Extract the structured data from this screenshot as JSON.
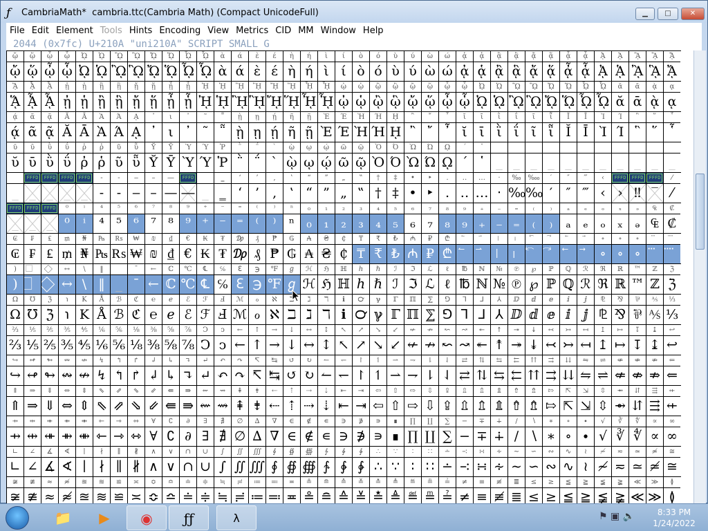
{
  "window": {
    "title": "CambriaMath*  cambria.ttc(Cambria Math) (Compact UnicodeFull)",
    "app_icon": "fontforge-icon"
  },
  "menu": [
    "File",
    "Edit",
    "Element",
    "Tools",
    "Hints",
    "Encoding",
    "View",
    "Metrics",
    "CID",
    "MM",
    "Window",
    "Help"
  ],
  "menu_disabled": [
    "Tools"
  ],
  "status": "2044 (0x7fc) U+210A \"uni210A\" SCRIPT SMALL G",
  "colors": {
    "selection": "#7aa2d6",
    "placeholder_label": "#1f3c78"
  },
  "grid": {
    "rows": [
      "ᾤ ᾥ ᾦ ᾧ ᾨ ᾩ ᾪ ᾫ ᾬ ᾭ ᾮ ᾯ ὰ ά ὲ έ ὴ ή ὶ ί ὸ ό ὺ ύ ὼ ώ ᾀ ᾁ ᾂ ᾃ ᾄ ᾅ ᾆ ᾇ ᾈ ᾉ ᾊ ᾋ ᾌ",
      "ᾍ ᾎ ᾏ ᾐ ᾑ ᾒ ᾓ ᾔ ᾕ ᾖ ᾗ ᾘ ᾙ ᾚ ᾛ ᾜ ᾝ ᾞ ᾟ ᾠ ᾡ ᾢ ᾣ ᾤ ᾥ ᾦ ᾧ ᾨ ᾩ ᾪ ᾫ ᾬ ᾭ ᾮ ᾯ ᾰ ᾱ ᾲ ᾳ",
      "ᾴ ᾶ ᾷ Ᾰ Ᾱ Ὰ Ά ᾼ ᾽ ι ᾿ ῀ ῁ ῂ ῃ ῄ ῆ ῇ Ὲ Έ Ὴ Ή ῌ ῍ ῎ ῏ ῐ ῑ ῒ ΐ ῖ ῗ Ῐ Ῑ Ὶ Ί ῝ ῞ ῟",
      "ῠ ῡ ῢ ΰ ῤ ῥ ῦ ῧ Ῠ Ῡ Ὺ Ύ Ῥ ῭ ΅ ` ῲ ῳ ῴ ῶ ῷ Ὸ Ό Ὼ Ώ ῼ ´ ῾ _ _ _ _ _ _ _ _ _ _ _",
      "_ _ _ _ _ ‐ ‑ ‒ – — ― _ ‗ ‘ ’ ‚ ‛ “ ” „ ‟ † ‡ • ‣ ․ ‥ … ‧ ‰ ‱ ′ ″ ‴ ‹ › ‼ ‾ ⁄",
      "_ _ _ ⁰ ⁱ ⁴ ⁵ ⁶ ⁷ ⁸ ⁹ ⁺ ⁻ ⁼ ⁽ ⁾ ⁿ ₀ ₁ ₂ ₃ ₄ ₅ ₆ ₇ ₈ ₉ ₊ ₋ ₌ ₍ ₎ ₐ ₑ ₒ ₓ ₔ ₠ ₡",
      "₢ ₣ ₤ ₥ ₦ ₧ ₨ ₩ ₪ ₫ € ₭ ₮ ₯ ₰ ₱ ₲ ₳ ₴ ₵ ₸ ₹ ₺ ₼ ₽ ₾ ⃐ ⃑ ⃒ ⃓ ⃔ ⃕ ⃖ ⃗ ∘ ∘ ∘ ⃛ ⃜",
      ") ⃞ ⃟ ↔ \\ ‖ _ ¯ ← ℂ ℃ ℄ ℅ ℇ ℈ ℉ ℊ ℋ ℌ ℍ ℎ ℏ ℐ ℑ ℒ ℓ ℔ ℕ № ℗ ℘ ℙ ℚ ℛ ℜ ℝ ™ ℤ ℨ",
      "Ω ℧ ℨ ℩ K Å ℬ ℭ ℮ ℯ ℰ ℱ Ⅎ ℳ ℴ ℵ ℶ ℷ ℸ ℹ ℺ ℽ ℾ ℿ ⅀ ⅁ ⅂ ⅃ ⅄ ⅅ ⅆ ⅇ ⅈ ⅉ ⅊ ⅋ ⅌ ⅍ ⅓",
      "⅔ ⅕ ⅖ ⅗ ⅘ ⅙ ⅚ ⅛ ⅜ ⅝ ⅞ Ↄ ↄ ← ↑ → ↓ ↔ ↕ ↖ ↗ ↘ ↙ ↚ ↛ ↜ ↝ ↞ ↟ ↠ ↡ ↢ ↣ ↤ ↥ ↦ ↧ ↨ ↩",
      "↪ ↫ ↬ ↭ ↮ ↯ ↰ ↱ ↲ ↳ ↴ ↵ ↶ ↷ ↸ ↹ ↺ ↻ ↼ ↽ ↾ ↿ ⇀ ⇁ ⇂ ⇃ ⇄ ⇅ ⇆ ⇇ ⇈ ⇉ ⇊ ⇋ ⇌ ⇍ ⇎ ⇏ ⇐",
      "⇑ ⇒ ⇓ ⇔ ⇕ ⇖ ⇗ ⇘ ⇙ ⇚ ⇛ ⇜ ⇝ ⇞ ⇟ ⇠ ⇡ ⇢ ⇣ ⇤ ⇥ ⇦ ⇧ ⇨ ⇩ ⇪ ⇫ ⇬ ⇭ ⇮ ⇯ ⇰ ⇱ ⇲ ⇳ ⇴ ⇵ ⇶ ⇷",
      "⇸ ⇹ ⇺ ⇻ ⇼ ⇽ ⇾ ⇿ ∀ ∁ ∂ ∃ ∄ ∅ ∆ ∇ ∈ ∉ ∊ ∋ ∌ ∍ ∎ ∏ ∐ ∑ − ∓ ∔ ∕ ∖ ∗ ∘ ∙ √ ∛ ∜ ∝ ∞",
      "∟ ∠ ∡ ∢ ∣ ∤ ∥ ∦ ∧ ∨ ∩ ∪ ∫ ∬ ∭ ∮ ∯ ∰ ∱ ∲ ∳ ∴ ∵ ∶ ∷ ∸ ∹ ∺ ∻ ∼ ∽ ∾ ∿ ≀ ≁ ≂ ≃ ≄ ≅",
      "≆ ≇ ≈ ≉ ≊ ≋ ≌ ≍ ≎ ≏ ≐ ≑ ≒ ≓ ≔ ≕ ≖ ≗ ≘ ≙ ≚ ≛ ≜ ≝ ≞ ≟ ≠ ≡ ≢ ≣ ≤ ≥ ≦ ≧ ≨ ≩ ≪ ≫ ≬"
    ],
    "selected": {
      "5": [
        3,
        4,
        7,
        10,
        11,
        12,
        13,
        14,
        15,
        17,
        18,
        19,
        20,
        21,
        22,
        25,
        26,
        27,
        28,
        29,
        30,
        31
      ],
      "6": [
        20,
        21,
        22,
        23,
        24,
        25,
        26,
        27,
        28,
        29,
        30,
        31,
        32,
        33,
        34,
        35,
        36,
        37,
        38
      ],
      "7": [
        0,
        1,
        2,
        3,
        4,
        5,
        6,
        7,
        8,
        9,
        10,
        11,
        13,
        14,
        15,
        16
      ]
    },
    "missing": {
      "4": [
        1,
        2,
        3,
        4,
        10,
        35,
        36,
        37
      ],
      "5": [
        0,
        1,
        2
      ]
    },
    "placeholder_label": "FFFD"
  },
  "taskbar": {
    "items": [
      "start-orb",
      "explorer-icon",
      "media-player-icon",
      "chrome-icon",
      "fontforge-icon",
      "xming-icon"
    ],
    "time": "8:33 PM",
    "date": "1/24/2022"
  }
}
